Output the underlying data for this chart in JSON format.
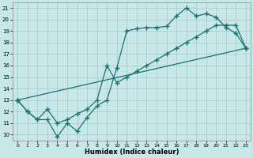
{
  "xlabel": "Humidex (Indice chaleur)",
  "bg_color": "#c8e8e8",
  "grid_color": "#aacece",
  "line_color": "#1a7070",
  "xlim": [
    -0.5,
    23.5
  ],
  "ylim": [
    9.5,
    21.5
  ],
  "xticks": [
    0,
    1,
    2,
    3,
    4,
    5,
    6,
    7,
    8,
    9,
    10,
    11,
    12,
    13,
    14,
    15,
    16,
    17,
    18,
    19,
    20,
    21,
    22,
    23
  ],
  "yticks": [
    10,
    11,
    12,
    13,
    14,
    15,
    16,
    17,
    18,
    19,
    20,
    21
  ],
  "line1_x": [
    0,
    1,
    2,
    3,
    4,
    5,
    6,
    7,
    8,
    9,
    10,
    11,
    12,
    13,
    14,
    15,
    16,
    17,
    18,
    19,
    20,
    21,
    22,
    23
  ],
  "line1_y": [
    13,
    12,
    11.3,
    11.3,
    9.8,
    11,
    10.3,
    11.5,
    12.5,
    13,
    15.8,
    19,
    19.2,
    19.3,
    19.3,
    19.4,
    20.3,
    21,
    20.3,
    20.5,
    20.2,
    19.3,
    18.8,
    17.5
  ],
  "line2_x": [
    0,
    1,
    2,
    3,
    4,
    5,
    6,
    7,
    8,
    9,
    10,
    11,
    12,
    13,
    14,
    15,
    16,
    17,
    18,
    19,
    20,
    21,
    22,
    23
  ],
  "line2_y": [
    13,
    12,
    11.3,
    12.2,
    11,
    11.3,
    11.8,
    12.2,
    13,
    16,
    14.5,
    15.0,
    15.5,
    16.0,
    16.5,
    17.0,
    17.5,
    18.0,
    18.5,
    19.0,
    19.5,
    19.5,
    19.5,
    17.5
  ],
  "line3_x": [
    0,
    23
  ],
  "line3_y": [
    13,
    17.5
  ],
  "marker": "+",
  "marker_size": 4,
  "lw": 0.9
}
